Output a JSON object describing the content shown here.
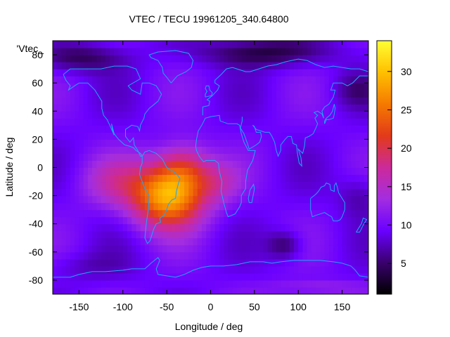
{
  "chart_data": {
    "type": "heatmap",
    "title": "VTEC / TECU 19961205_340.64800",
    "xlabel": "Longitude / deg",
    "ylabel": "Latitude / deg",
    "series_key_label": "'Vtec_",
    "xlim": [
      -180,
      180
    ],
    "ylim": [
      -90,
      90
    ],
    "x_ticks": [
      -150,
      -100,
      -50,
      0,
      50,
      100,
      150
    ],
    "y_ticks": [
      -80,
      -60,
      -40,
      -20,
      0,
      20,
      40,
      60,
      80
    ],
    "colorbar": {
      "range": [
        1,
        34
      ],
      "ticks": [
        5,
        10,
        15,
        20,
        25,
        30
      ],
      "palette": [
        "#000000",
        "#3a006e",
        "#6a00ff",
        "#a32de0",
        "#cc2a9a",
        "#e23a1a",
        "#f57a00",
        "#ffc000",
        "#ffff33"
      ]
    },
    "coastline_color": "#1aa7ff",
    "grid": false,
    "notes": "VTEC field peaks near longitude -30..-70, latitude -10..-30 (about 28-30 TECU); background ~8-10 TECU; minima ~2-4 TECU at high northern latitudes and near 90E 55S."
  }
}
